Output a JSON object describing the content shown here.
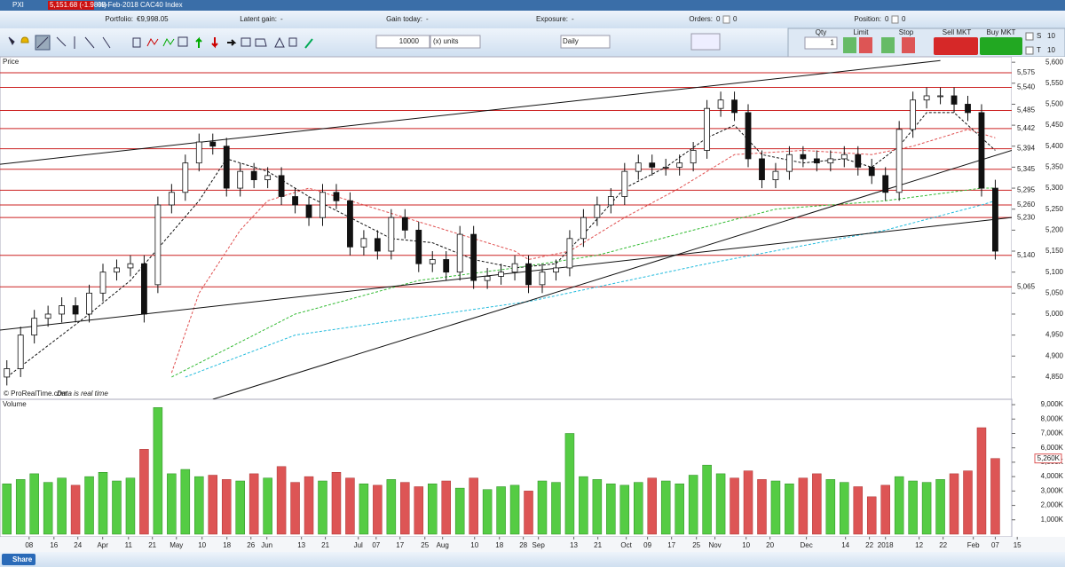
{
  "header": {
    "symbol": "PXI",
    "quote": "5,151.68 (-1.98%)",
    "description": "08-Feb-2018 CAC40 Index"
  },
  "account": [
    {
      "label": "Portfolio:",
      "value": "€9,998.05"
    },
    {
      "label": "Latent gain:",
      "value": "-"
    },
    {
      "label": "Gain today:",
      "value": "-"
    },
    {
      "label": "Exposure:",
      "value": "-"
    },
    {
      "label": "Orders:",
      "value": "0",
      "value2": "0"
    },
    {
      "label": "Position:",
      "value": "0",
      "value2": "0"
    }
  ],
  "toolbar": {
    "quantity": "10000",
    "unit": "(x) units",
    "period": "Daily"
  },
  "order_panel": {
    "qty_label": "Qty",
    "qty": "1",
    "limit": "Limit",
    "stop": "Stop",
    "sell": "Sell MKT",
    "buy": "Buy MKT",
    "s": "S",
    "t": "T",
    "s_value": "10",
    "t_value": "10"
  },
  "panes": {
    "price": "Price",
    "volume": "Volume"
  },
  "footer": {
    "share": "Share",
    "credit": "© ProRealTime.com",
    "credit_note": "Data is real time"
  },
  "chart_data": [
    {
      "type": "candlestick",
      "xlim": [
        -0.5,
        73.2
      ],
      "ylim": [
        4797,
        5613
      ],
      "up_color": "#ffffff",
      "down_color": "#111111",
      "open": [
        4850,
        4870,
        4950,
        4990,
        5000,
        5020,
        5000,
        5050,
        5100,
        5110,
        5120,
        5070,
        5260,
        5290,
        5360,
        5410,
        5400,
        5300,
        5340,
        5320,
        5330,
        5280,
        5260,
        5230,
        5290,
        5270,
        5160,
        5180,
        5150,
        5230,
        5200,
        5120,
        5130,
        5100,
        5190,
        5080,
        5090,
        5100,
        5120,
        5070,
        5100,
        5110,
        5180,
        5230,
        5260,
        5280,
        5340,
        5360,
        5350,
        5350,
        5360,
        5390,
        5490,
        5510,
        5480,
        5370,
        5320,
        5340,
        5380,
        5370,
        5360,
        5370,
        5380,
        5350,
        5330,
        5290,
        5440,
        5510,
        5520,
        5520,
        5500,
        5480,
        5300
      ],
      "high": [
        4890,
        4970,
        5010,
        5020,
        5040,
        5040,
        5070,
        5120,
        5130,
        5140,
        5140,
        5280,
        5310,
        5380,
        5430,
        5430,
        5420,
        5360,
        5360,
        5350,
        5350,
        5300,
        5280,
        5310,
        5310,
        5290,
        5200,
        5200,
        5250,
        5250,
        5220,
        5150,
        5150,
        5210,
        5210,
        5110,
        5120,
        5140,
        5140,
        5120,
        5130,
        5200,
        5250,
        5280,
        5300,
        5360,
        5380,
        5380,
        5370,
        5380,
        5410,
        5510,
        5530,
        5530,
        5500,
        5390,
        5360,
        5400,
        5400,
        5390,
        5390,
        5400,
        5400,
        5370,
        5350,
        5460,
        5530,
        5540,
        5540,
        5540,
        5520,
        5500,
        5320
      ],
      "low": [
        4830,
        4850,
        4930,
        4970,
        4980,
        4980,
        4980,
        5030,
        5080,
        5090,
        4980,
        5050,
        5240,
        5270,
        5340,
        5380,
        5280,
        5280,
        5300,
        5300,
        5260,
        5240,
        5210,
        5210,
        5250,
        5140,
        5140,
        5130,
        5130,
        5180,
        5100,
        5100,
        5080,
        5080,
        5060,
        5060,
        5070,
        5080,
        5050,
        5050,
        5080,
        5090,
        5160,
        5210,
        5240,
        5260,
        5320,
        5330,
        5330,
        5330,
        5340,
        5370,
        5470,
        5460,
        5350,
        5300,
        5300,
        5320,
        5350,
        5340,
        5340,
        5350,
        5330,
        5310,
        5270,
        5270,
        5420,
        5490,
        5500,
        5480,
        5460,
        5280,
        5130
      ],
      "close": [
        4870,
        4950,
        4990,
        5000,
        5020,
        5000,
        5050,
        5100,
        5110,
        5120,
        5000,
        5260,
        5290,
        5360,
        5410,
        5400,
        5300,
        5340,
        5320,
        5330,
        5280,
        5260,
        5230,
        5290,
        5270,
        5160,
        5180,
        5150,
        5230,
        5200,
        5120,
        5130,
        5100,
        5190,
        5080,
        5090,
        5100,
        5120,
        5070,
        5100,
        5110,
        5180,
        5230,
        5260,
        5280,
        5340,
        5360,
        5350,
        5350,
        5360,
        5390,
        5490,
        5510,
        5480,
        5370,
        5320,
        5340,
        5380,
        5370,
        5360,
        5370,
        5380,
        5350,
        5330,
        5290,
        5440,
        5510,
        5520,
        5520,
        5500,
        5480,
        5300,
        5150
      ],
      "yticks": [
        {
          "value": 4850,
          "label": "4,850"
        },
        {
          "value": 4900,
          "label": "4,900"
        },
        {
          "value": 4950,
          "label": "4,950"
        },
        {
          "value": 5000,
          "label": "5,000"
        },
        {
          "value": 5050,
          "label": "5,050"
        },
        {
          "value": 5100,
          "label": "5,100"
        },
        {
          "value": 5150,
          "label": "5,150"
        },
        {
          "value": 5200,
          "label": "5,200"
        },
        {
          "value": 5250,
          "label": "5,250"
        },
        {
          "value": 5300,
          "label": "5,300"
        },
        {
          "value": 5350,
          "label": "5,350"
        },
        {
          "value": 5400,
          "label": "5,400"
        },
        {
          "value": 5450,
          "label": "5,450"
        },
        {
          "value": 5500,
          "label": "5,500"
        },
        {
          "value": 5550,
          "label": "5,550"
        },
        {
          "value": 5600,
          "label": "5,600"
        }
      ],
      "levels": [
        {
          "value": 5575,
          "label": "5,575"
        },
        {
          "value": 5540,
          "label": "5,540"
        },
        {
          "value": 5485,
          "label": "5,485"
        },
        {
          "value": 5442,
          "label": "5,442"
        },
        {
          "value": 5394,
          "label": "5,394"
        },
        {
          "value": 5345,
          "label": "5,345"
        },
        {
          "value": 5295,
          "label": "5,295"
        },
        {
          "value": 5260,
          "label": "5,260"
        },
        {
          "value": 5230,
          "label": "5,230"
        },
        {
          "value": 5140,
          "label": "5,140"
        },
        {
          "value": 5065,
          "label": "5,065"
        }
      ],
      "level_color": "#cc2222",
      "averages": [
        {
          "color": "#111111",
          "x": [
            0,
            6,
            9,
            14,
            16,
            19,
            22,
            25,
            28,
            31,
            34,
            37,
            40,
            42,
            45,
            48,
            51,
            53,
            55,
            58,
            61,
            63,
            65,
            67,
            69,
            72
          ],
          "values": [
            4850,
            5000,
            5080,
            5270,
            5370,
            5340,
            5280,
            5230,
            5180,
            5170,
            5130,
            5110,
            5120,
            5190,
            5300,
            5350,
            5420,
            5450,
            5380,
            5360,
            5370,
            5350,
            5400,
            5480,
            5480,
            5390
          ]
        },
        {
          "color": "#e05050",
          "x": [
            12,
            14,
            17,
            19,
            22,
            27,
            30,
            34,
            37,
            38,
            41,
            45,
            49,
            53,
            58,
            63,
            66,
            70,
            72
          ],
          "values": [
            4860,
            5050,
            5200,
            5270,
            5300,
            5250,
            5220,
            5180,
            5150,
            5130,
            5150,
            5230,
            5300,
            5380,
            5390,
            5380,
            5400,
            5440,
            5420
          ]
        },
        {
          "color": "#33bb33",
          "x": [
            12,
            21,
            30,
            37,
            43,
            50,
            56,
            64,
            71,
            72
          ],
          "values": [
            4850,
            5000,
            5080,
            5110,
            5140,
            5200,
            5250,
            5270,
            5300,
            5300
          ]
        },
        {
          "color": "#22bbdd",
          "x": [
            13,
            21,
            38,
            51,
            64,
            71,
            72
          ],
          "values": [
            4850,
            4950,
            5030,
            5120,
            5200,
            5260,
            5270
          ]
        }
      ],
      "trendlines": [
        {
          "x": [
            -0.5,
            68
          ],
          "values": [
            5357,
            5604
          ]
        },
        {
          "x": [
            15,
            73.2
          ],
          "values": [
            4797,
            5390
          ]
        },
        {
          "x": [
            -0.5,
            73.2
          ],
          "values": [
            4962,
            5230
          ]
        }
      ]
    },
    {
      "type": "bar",
      "xlim": [
        -0.5,
        73.2
      ],
      "ylim": [
        0,
        9250
      ],
      "up_color": "#55cc44",
      "down_color": "#dd5555",
      "values": [
        3500,
        3800,
        4200,
        3600,
        3900,
        3400,
        4000,
        4300,
        3700,
        3900,
        5900,
        8800,
        4200,
        4500,
        4000,
        4100,
        3800,
        3700,
        4200,
        3900,
        4700,
        3600,
        4000,
        3700,
        4300,
        3900,
        3500,
        3400,
        3800,
        3600,
        3300,
        3500,
        3700,
        3200,
        3900,
        3100,
        3300,
        3400,
        3000,
        3700,
        3600,
        7000,
        4000,
        3800,
        3500,
        3400,
        3600,
        3900,
        3700,
        3500,
        4100,
        4800,
        4200,
        3900,
        4400,
        3800,
        3700,
        3500,
        3900,
        4200,
        3800,
        3600,
        3300,
        2600,
        3400,
        4000,
        3700,
        3600,
        3800,
        4200,
        4400,
        7400,
        5260
      ],
      "last_label": "5,260K",
      "yticks": [
        {
          "value": 1000,
          "label": "1,000K"
        },
        {
          "value": 2000,
          "label": "2,000K"
        },
        {
          "value": 3000,
          "label": "3,000K"
        },
        {
          "value": 4000,
          "label": "4,000K"
        },
        {
          "value": 5000,
          "label": "5,000K"
        },
        {
          "value": 6000,
          "label": "6,000K"
        },
        {
          "value": 7000,
          "label": "7,000K"
        },
        {
          "value": 8000,
          "label": "8,000K"
        },
        {
          "value": 9000,
          "label": "9,000K"
        }
      ],
      "xticks": [
        {
          "value": 1.62,
          "label": "08"
        },
        {
          "value": 3.43,
          "label": "16"
        },
        {
          "value": 5.17,
          "label": "24"
        },
        {
          "value": 6.98,
          "label": "Apr"
        },
        {
          "value": 8.86,
          "label": "11"
        },
        {
          "value": 10.6,
          "label": "21"
        },
        {
          "value": 12.35,
          "label": "May"
        },
        {
          "value": 14.22,
          "label": "10"
        },
        {
          "value": 16.03,
          "label": "18"
        },
        {
          "value": 17.78,
          "label": "26"
        },
        {
          "value": 18.94,
          "label": "Jun"
        },
        {
          "value": 21.46,
          "label": "13"
        },
        {
          "value": 23.2,
          "label": "21"
        },
        {
          "value": 25.6,
          "label": "Jul"
        },
        {
          "value": 26.9,
          "label": "07"
        },
        {
          "value": 28.64,
          "label": "17"
        },
        {
          "value": 30.45,
          "label": "25"
        },
        {
          "value": 31.74,
          "label": "Aug"
        },
        {
          "value": 34.07,
          "label": "10"
        },
        {
          "value": 35.88,
          "label": "18"
        },
        {
          "value": 37.62,
          "label": "28"
        },
        {
          "value": 38.72,
          "label": "Sep"
        },
        {
          "value": 41.3,
          "label": "13"
        },
        {
          "value": 43.05,
          "label": "21"
        },
        {
          "value": 45.12,
          "label": "Oct"
        },
        {
          "value": 46.67,
          "label": "09"
        },
        {
          "value": 48.42,
          "label": "17"
        },
        {
          "value": 50.23,
          "label": "25"
        },
        {
          "value": 51.58,
          "label": "Nov"
        },
        {
          "value": 53.85,
          "label": "10"
        },
        {
          "value": 55.59,
          "label": "20"
        },
        {
          "value": 58.24,
          "label": "Dec"
        },
        {
          "value": 61.09,
          "label": "14"
        },
        {
          "value": 62.83,
          "label": "22"
        },
        {
          "value": 64.0,
          "label": "2018"
        },
        {
          "value": 66.45,
          "label": "12"
        },
        {
          "value": 68.2,
          "label": "22"
        },
        {
          "value": 70.4,
          "label": "Feb"
        },
        {
          "value": 72.0,
          "label": "07"
        },
        {
          "value": 73.6,
          "label": "15"
        }
      ]
    }
  ]
}
